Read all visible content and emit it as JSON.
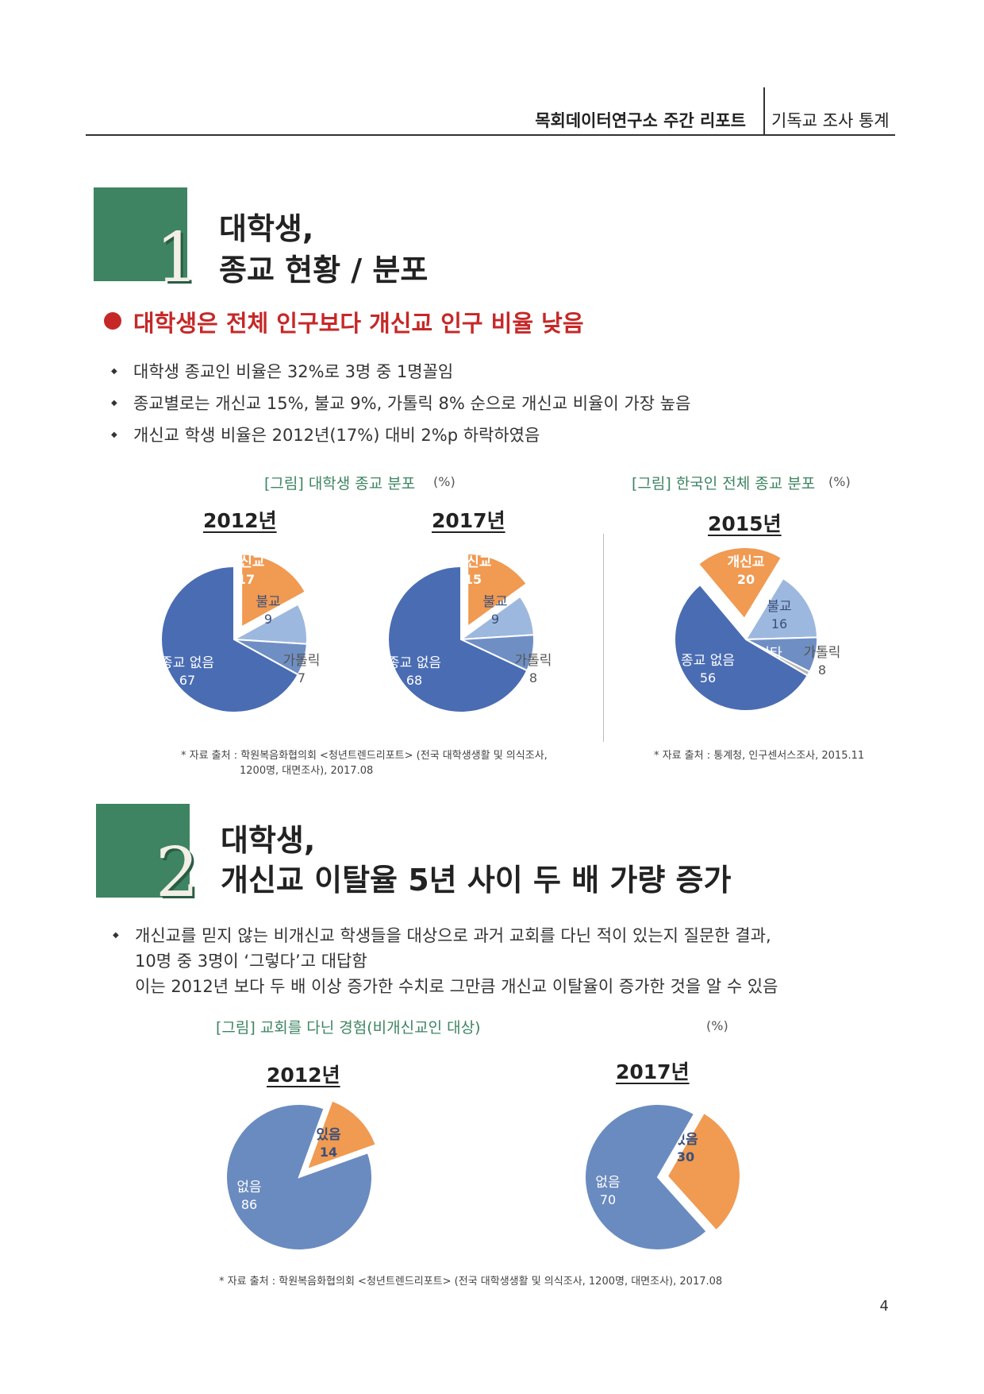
{
  "header": {
    "title": "목회데이터연구소 주간 리포트",
    "subtitle": "기독교 조사 통계"
  },
  "section1": {
    "number": "1",
    "title_line1": "대학생,",
    "title_line2": "종교 현황 / 분포",
    "headline": "대학생은 전체 인구보다 개신교 인구 비율 낮음",
    "bullets": [
      "대학생 종교인 비율은 32%로 3명 중 1명꼴임",
      "종교별로는 개신교 15%, 불교 9%, 가톨릭 8% 순으로 개신교 비율이 가장 높음",
      "개신교 학생 비율은 2012년(17%) 대비 2%p 하락하였음"
    ],
    "fig1_caption": "[그림] 대학생 종교 분포",
    "fig1_unit": "(%)",
    "fig2_caption": "[그림] 한국인 전체 종교 분포",
    "fig2_unit": "(%)",
    "source1_line1": "* 자료 출처 : 학원복음화협의회 <청년트렌드리포트> (전국 대학생생활 및 의식조사,",
    "source1_line2": "1200명, 대면조사),   2017.08",
    "source2": "* 자료 출처 : 통계청, 인구센서스조사, 2015.11"
  },
  "section2": {
    "number": "2",
    "title_line1": "대학생,",
    "title_line2": "개신교 이탈율 5년 사이 두 배 가량 증가",
    "bullet_line1": "개신교를 믿지 않는 비개신교 학생들을 대상으로 과거 교회를 다닌 적이 있는지 질문한 결과,",
    "bullet_line2": "10명 중 3명이 ‘그렇다’고 대답함",
    "bullet_line3": "이는 2012년 보다 두 배 이상 증가한 수치로 그만큼 개신교 이탈율이 증가한 것을 알 수 있음",
    "fig_caption": "[그림] 교회를 다닌 경험(비개신교인 대상)",
    "fig_unit": "(%)",
    "source": "* 자료 출처 : 학원복음화협의회 <청년트렌드리포트> (전국 대학생생활 및 의식조사, 1200명, 대면조사),   2017.08"
  },
  "page_number": "4",
  "colors": {
    "green": "#3e8462",
    "red": "#c62828",
    "none_religion": "#4a6cb3",
    "protestant": "#f09a52",
    "buddhist": "#9db8de",
    "catholic": "#6f8fc4",
    "other": "#b7b7b7",
    "no_experience": "#6a8bc0",
    "yes_experience": "#f09a52"
  },
  "chart_data": [
    {
      "type": "pie",
      "title": "2012년",
      "slices": [
        {
          "label": "개신교",
          "value": 17,
          "color": "#f09a52"
        },
        {
          "label": "불교",
          "value": 9,
          "color": "#9db8de"
        },
        {
          "label": "가톨릭",
          "value": 7,
          "color": "#6f8fc4"
        },
        {
          "label": "종교 없음",
          "value": 67,
          "color": "#4a6cb3"
        }
      ],
      "exploded": "개신교"
    },
    {
      "type": "pie",
      "title": "2017년",
      "slices": [
        {
          "label": "개신교",
          "value": 15,
          "color": "#f09a52"
        },
        {
          "label": "불교",
          "value": 9,
          "color": "#9db8de"
        },
        {
          "label": "가톨릭",
          "value": 8,
          "color": "#6f8fc4"
        },
        {
          "label": "종교 없음",
          "value": 68,
          "color": "#4a6cb3"
        }
      ],
      "exploded": "개신교"
    },
    {
      "type": "pie",
      "title": "2015년",
      "slices": [
        {
          "label": "개신교",
          "value": 20,
          "color": "#f09a52"
        },
        {
          "label": "불교",
          "value": 16,
          "color": "#9db8de"
        },
        {
          "label": "가톨릭",
          "value": 8,
          "color": "#6f8fc4"
        },
        {
          "label": "기타",
          "value": 1,
          "color": "#b7b7b7"
        },
        {
          "label": "종교 없음",
          "value": 56,
          "color": "#4a6cb3"
        }
      ],
      "exploded": "개신교"
    },
    {
      "type": "pie",
      "title": "2012년",
      "slices": [
        {
          "label": "있음",
          "value": 14,
          "color": "#f09a52"
        },
        {
          "label": "없음",
          "value": 86,
          "color": "#6a8bc0"
        }
      ],
      "exploded": "있음"
    },
    {
      "type": "pie",
      "title": "2017년",
      "slices": [
        {
          "label": "있음",
          "value": 30,
          "color": "#f09a52"
        },
        {
          "label": "없음",
          "value": 70,
          "color": "#6a8bc0"
        }
      ],
      "exploded": "있음"
    }
  ]
}
